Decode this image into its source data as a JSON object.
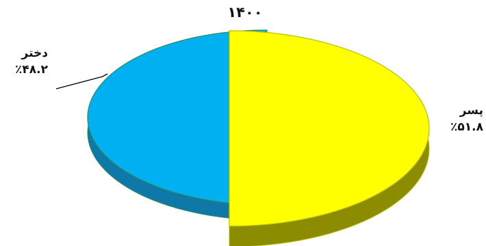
{
  "chart_data": {
    "type": "pie",
    "style": "3d-exploded",
    "title": "۱۴۰۰",
    "slices": [
      {
        "label": "دختر",
        "value": 48.2,
        "value_label": "٪۴۸.۲",
        "color": "#00B0F0",
        "border": "#2E8B57"
      },
      {
        "label": "پسر",
        "value": 51.8,
        "value_label": "٪۵۱.۸",
        "color": "#FFFF00",
        "border": "#BDBD00"
      }
    ]
  }
}
